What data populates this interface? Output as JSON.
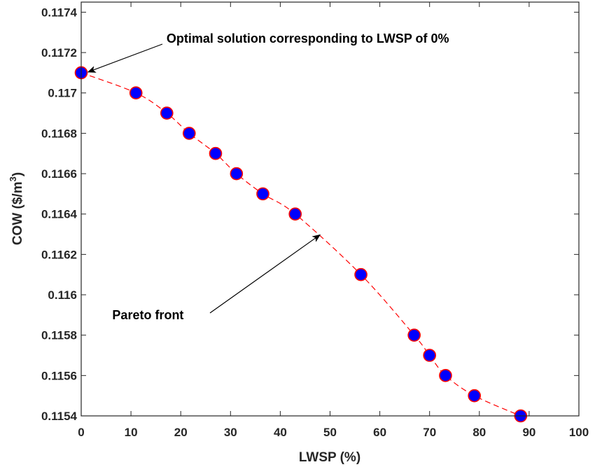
{
  "chart_data": {
    "type": "scatter",
    "title": "",
    "xlabel": "LWSP (%)",
    "ylabel_main": "COW ($/m",
    "ylabel_sup": "3",
    "ylabel_close": ")",
    "xlim": [
      0,
      100
    ],
    "ylim": [
      0.1154,
      0.11745
    ],
    "xticks": [
      "0",
      "10",
      "20",
      "30",
      "40",
      "50",
      "60",
      "70",
      "80",
      "90",
      "100"
    ],
    "xtick_values": [
      0,
      10,
      20,
      30,
      40,
      50,
      60,
      70,
      80,
      90,
      100
    ],
    "yticks": [
      "0.1154",
      "0.1156",
      "0.1158",
      "0.116",
      "0.1162",
      "0.1164",
      "0.1166",
      "0.1168",
      "0.117",
      "0.1172",
      "0.1174"
    ],
    "ytick_values": [
      0.1154,
      0.1156,
      0.1158,
      0.116,
      0.1162,
      0.1164,
      0.1166,
      0.1168,
      0.117,
      0.1172,
      0.1174
    ],
    "grid": false,
    "series": [
      {
        "x": [
          0,
          11,
          17.2,
          21.7,
          27,
          31.2,
          36.5,
          43,
          56.2,
          66.9,
          70,
          73.2,
          79,
          88.3
        ],
        "y": [
          0.1171,
          0.117,
          0.1169,
          0.1168,
          0.1167,
          0.1166,
          0.1165,
          0.1164,
          0.1161,
          0.1158,
          0.1157,
          0.1156,
          0.1155,
          0.1154
        ],
        "marker_face": "#0000ff",
        "marker_edge": "#ff0000",
        "line_color": "#ff0000",
        "line_style": "dashed"
      }
    ],
    "annotations": [
      {
        "text": "Optimal solution corresponding to LWSP of 0%",
        "arrow_to": [
          0.8,
          0.1171
        ],
        "text_at": [
          17,
          0.11727
        ]
      },
      {
        "text": "Pareto front",
        "arrow_to": [
          48,
          0.11628
        ],
        "text_at": [
          8.5,
          0.1159
        ]
      }
    ]
  }
}
